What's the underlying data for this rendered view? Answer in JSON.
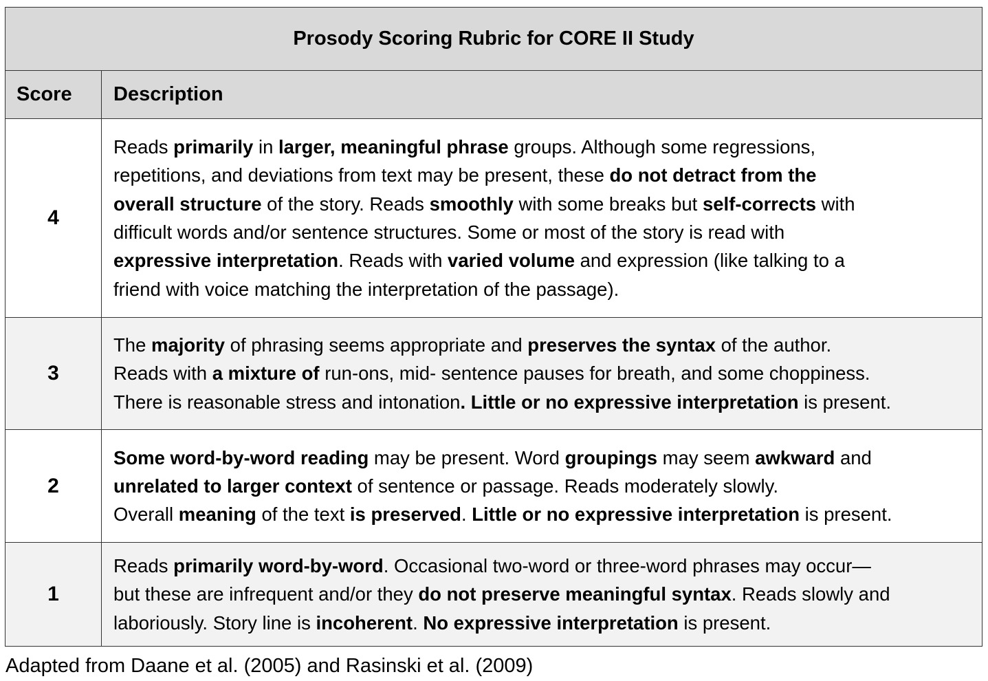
{
  "title": "Prosody Scoring Rubric for CORE II Study",
  "headers": {
    "score": "Score",
    "description": "Description"
  },
  "rows": [
    {
      "score": "4",
      "lines": [
        [
          {
            "t": "Reads ",
            "b": false
          },
          {
            "t": "primarily",
            "b": true
          },
          {
            "t": " in ",
            "b": false
          },
          {
            "t": "larger, meaningful phrase",
            "b": true
          },
          {
            "t": " groups. Although some regressions,",
            "b": false
          }
        ],
        [
          {
            "t": "repetitions, and deviations from text may be present, these ",
            "b": false
          },
          {
            "t": "do not detract from the",
            "b": true
          }
        ],
        [
          {
            "t": "overall structure",
            "b": true
          },
          {
            "t": " of the story. Reads ",
            "b": false
          },
          {
            "t": "smoothly",
            "b": true
          },
          {
            "t": " with some breaks but ",
            "b": false
          },
          {
            "t": "self-corrects",
            "b": true
          },
          {
            "t": " with",
            "b": false
          }
        ],
        [
          {
            "t": "difficult words and/or sentence structures. Some or most of the story is read with",
            "b": false
          }
        ],
        [
          {
            "t": "expressive interpretation",
            "b": true
          },
          {
            "t": ". Reads with ",
            "b": false
          },
          {
            "t": "varied volume",
            "b": true
          },
          {
            "t": " and expression (like talking to a",
            "b": false
          }
        ],
        [
          {
            "t": "friend with voice matching the interpretation of the passage).",
            "b": false
          }
        ]
      ]
    },
    {
      "score": "3",
      "lines": [
        [
          {
            "t": "The ",
            "b": false
          },
          {
            "t": "majority",
            "b": true
          },
          {
            "t": " of phrasing seems appropriate and ",
            "b": false
          },
          {
            "t": "preserves the syntax",
            "b": true
          },
          {
            "t": " of the author.",
            "b": false
          }
        ],
        [
          {
            "t": "Reads with ",
            "b": false
          },
          {
            "t": "a mixture of",
            "b": true
          },
          {
            "t": " run-ons, mid- sentence pauses for breath, and some choppiness.",
            "b": false
          }
        ],
        [
          {
            "t": "There is reasonable stress and intonation",
            "b": false
          },
          {
            "t": ". Little or no expressive interpretation",
            "b": true
          },
          {
            "t": " is present.",
            "b": false
          }
        ]
      ]
    },
    {
      "score": "2",
      "lines": [
        [
          {
            "t": "Some word-by-word reading",
            "b": true
          },
          {
            "t": " may be present. Word ",
            "b": false
          },
          {
            "t": "groupings",
            "b": true
          },
          {
            "t": " may seem ",
            "b": false
          },
          {
            "t": "awkward",
            "b": true
          },
          {
            "t": " and",
            "b": false
          }
        ],
        [
          {
            "t": "unrelated to larger context",
            "b": true
          },
          {
            "t": " of sentence or passage. Reads moderately slowly.",
            "b": false
          }
        ],
        [
          {
            "t": "Overall ",
            "b": false
          },
          {
            "t": "meaning",
            "b": true
          },
          {
            "t": " of the text ",
            "b": false
          },
          {
            "t": "is preserved",
            "b": true
          },
          {
            "t": ". ",
            "b": false
          },
          {
            "t": "Little or no expressive interpretation",
            "b": true
          },
          {
            "t": " is present.",
            "b": false
          }
        ]
      ]
    },
    {
      "score": "1",
      "lines": [
        [
          {
            "t": "Reads ",
            "b": false
          },
          {
            "t": "primarily word-by-word",
            "b": true
          },
          {
            "t": ". Occasional two-word or three-word phrases may occur—",
            "b": false
          }
        ],
        [
          {
            "t": "but these are infrequent and/or they ",
            "b": false
          },
          {
            "t": "do not preserve meaningful syntax",
            "b": true
          },
          {
            "t": ". Reads slowly and",
            "b": false
          }
        ],
        [
          {
            "t": "laboriously. Story line is ",
            "b": false
          },
          {
            "t": "incoherent",
            "b": true
          },
          {
            "t": ". ",
            "b": false
          },
          {
            "t": "No expressive interpretation",
            "b": true
          },
          {
            "t": " is present.",
            "b": false
          }
        ]
      ]
    }
  ],
  "caption": "Adapted from Daane et al. (2005) and Rasinski et al. (2009)"
}
